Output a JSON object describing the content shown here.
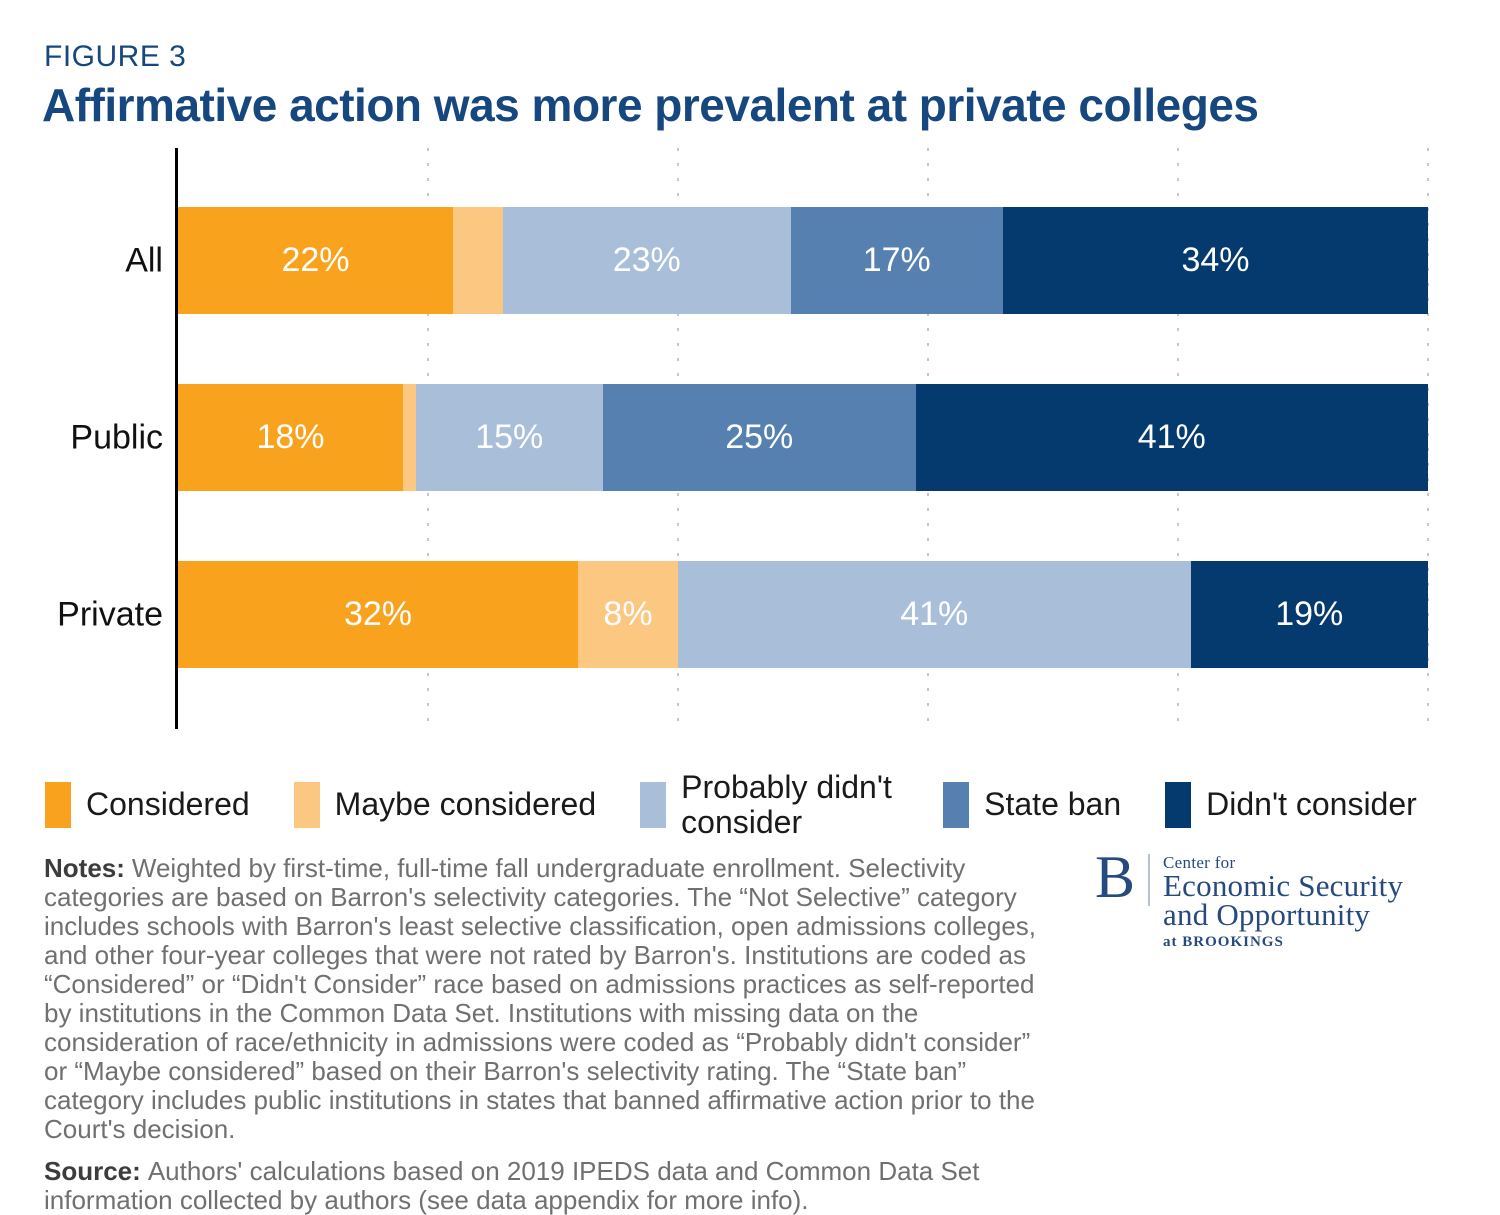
{
  "figure_label": "FIGURE 3",
  "title": "Affirmative action was more prevalent at private colleges",
  "colors": {
    "considered": "#F9A21D",
    "maybe_considered": "#FBC781",
    "probably_didnt_consider": "#A9BED9",
    "state_ban": "#5580AF",
    "didnt_consider": "#053A6E",
    "title_navy": "#17477F",
    "logo_navy": "#264A7D",
    "gridline_gray": "#C7C7C7"
  },
  "chart_data": {
    "type": "bar",
    "orientation": "horizontal-stacked",
    "unit": "percent",
    "title": "Affirmative action was more prevalent at private colleges",
    "categories": [
      "All",
      "Public",
      "Private"
    ],
    "series": [
      {
        "name": "Considered",
        "color_key": "considered",
        "values": [
          22,
          18,
          32
        ]
      },
      {
        "name": "Maybe considered",
        "color_key": "maybe_considered",
        "values": [
          4,
          1,
          8
        ]
      },
      {
        "name": "Probably didn't consider",
        "color_key": "probably_didnt_consider",
        "values": [
          23,
          15,
          41
        ]
      },
      {
        "name": "State ban",
        "color_key": "state_ban",
        "values": [
          17,
          25,
          0
        ]
      },
      {
        "name": "Didn't consider",
        "color_key": "didnt_consider",
        "values": [
          34,
          41,
          19
        ]
      }
    ],
    "segment_labels": [
      [
        "22%",
        "",
        "23%",
        "17%",
        "34%"
      ],
      [
        "18%",
        "",
        "15%",
        "25%",
        "41%"
      ],
      [
        "32%",
        "8%",
        "41%",
        "",
        "19%"
      ]
    ],
    "xlim": [
      0,
      100
    ],
    "gridlines_percent": [
      20,
      40,
      60,
      80,
      100
    ],
    "legend_position": "bottom"
  },
  "legend": [
    {
      "label": "Considered",
      "color_key": "considered"
    },
    {
      "label": "Maybe considered",
      "color_key": "maybe_considered"
    },
    {
      "label": "Probably didn't consider",
      "color_key": "probably_didnt_consider",
      "two_line": true
    },
    {
      "label": "State ban",
      "color_key": "state_ban"
    },
    {
      "label": "Didn't consider",
      "color_key": "didnt_consider"
    }
  ],
  "notes": {
    "label": "Notes:",
    "text": "Weighted by first-time, full-time fall undergraduate enrollment. Selectivity categories are based on Barron's selectivity categories. The “Not Selective” category includes schools with Barron's least selective classification, open admissions colleges, and other four-year colleges that were not rated by Barron's. Institutions are coded as “Considered” or “Didn't Consider” race based on admissions practices as self-reported by institutions in the Common Data Set. Institutions with missing data on the consideration of race/ethnicity in admissions were coded as “Probably didn't consider” or “Maybe considered” based on their Barron's selectivity rating. The “State ban” category includes public institutions in states that banned affirmative action prior to the Court's decision."
  },
  "source": {
    "label": "Source:",
    "text": "Authors' calculations based on 2019 IPEDS data and Common Data Set information collected by authors (see data appendix for more info)."
  },
  "logo": {
    "b": "B",
    "line1": "Center for",
    "line2": "Economic Security",
    "line3": "and Opportunity",
    "line4": "at BROOKINGS"
  }
}
